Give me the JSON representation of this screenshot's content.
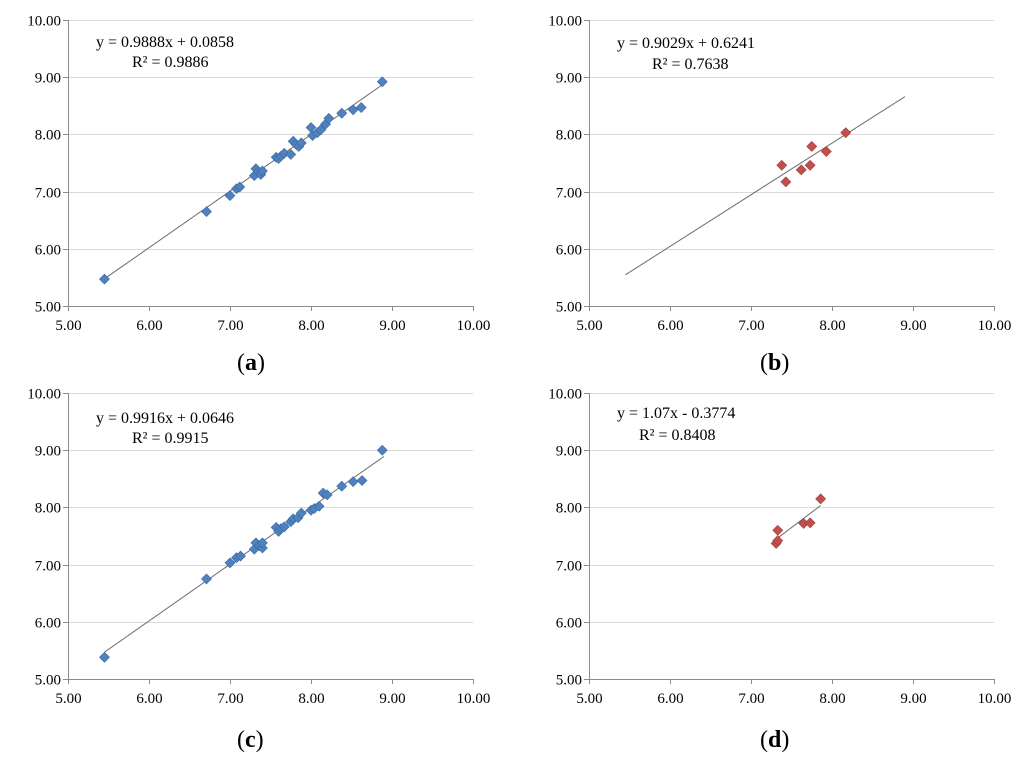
{
  "chart_data": [
    {
      "type": "scatter",
      "label": "a",
      "color": "#4f81bd",
      "equation": "y = 0.9888x + 0.0858",
      "r2": "R² = 0.9886",
      "trend": {
        "slope": 0.9888,
        "intercept": 0.0858,
        "x_range": [
          5.45,
          8.9
        ]
      },
      "xlim": [
        5,
        10
      ],
      "ylim": [
        5,
        10
      ],
      "xticks": [
        "5.00",
        "6.00",
        "7.00",
        "8.00",
        "9.00",
        "10.00"
      ],
      "yticks": [
        "5.00",
        "6.00",
        "7.00",
        "8.00",
        "9.00",
        "10.00"
      ],
      "points": [
        [
          5.45,
          5.47
        ],
        [
          6.71,
          6.65
        ],
        [
          7.0,
          6.93
        ],
        [
          7.08,
          7.05
        ],
        [
          7.12,
          7.08
        ],
        [
          7.3,
          7.28
        ],
        [
          7.32,
          7.4
        ],
        [
          7.35,
          7.35
        ],
        [
          7.38,
          7.3
        ],
        [
          7.4,
          7.36
        ],
        [
          7.57,
          7.6
        ],
        [
          7.6,
          7.58
        ],
        [
          7.63,
          7.62
        ],
        [
          7.67,
          7.67
        ],
        [
          7.75,
          7.65
        ],
        [
          7.78,
          7.88
        ],
        [
          7.82,
          7.82
        ],
        [
          7.85,
          7.79
        ],
        [
          7.88,
          7.85
        ],
        [
          8.0,
          8.12
        ],
        [
          8.02,
          7.98
        ],
        [
          8.08,
          8.03
        ],
        [
          8.12,
          8.08
        ],
        [
          8.18,
          8.18
        ],
        [
          8.22,
          8.28
        ],
        [
          8.38,
          8.37
        ],
        [
          8.52,
          8.43
        ],
        [
          8.62,
          8.47
        ],
        [
          8.88,
          8.92
        ]
      ]
    },
    {
      "type": "scatter",
      "label": "b",
      "color": "#c0504d",
      "equation": "y = 0.9029x + 0.6241",
      "r2": "R² = 0.7638",
      "trend": {
        "slope": 0.9029,
        "intercept": 0.6241,
        "x_range": [
          5.45,
          8.9
        ]
      },
      "xlim": [
        5,
        10
      ],
      "ylim": [
        5,
        10
      ],
      "xticks": [
        "5.00",
        "6.00",
        "7.00",
        "8.00",
        "9.00",
        "10.00"
      ],
      "yticks": [
        "5.00",
        "6.00",
        "7.00",
        "8.00",
        "9.00",
        "10.00"
      ],
      "points": [
        [
          7.38,
          7.46
        ],
        [
          7.43,
          7.17
        ],
        [
          7.62,
          7.38
        ],
        [
          7.73,
          7.46
        ],
        [
          7.75,
          7.79
        ],
        [
          7.93,
          7.7
        ],
        [
          8.17,
          8.03
        ]
      ]
    },
    {
      "type": "scatter",
      "label": "c",
      "color": "#4f81bd",
      "equation": "y = 0.9916x + 0.0646",
      "r2": "R² = 0.9915",
      "trend": {
        "slope": 0.9916,
        "intercept": 0.0646,
        "x_range": [
          5.45,
          8.9
        ]
      },
      "xlim": [
        5,
        10
      ],
      "ylim": [
        5,
        10
      ],
      "xticks": [
        "5.00",
        "6.00",
        "7.00",
        "8.00",
        "9.00",
        "10.00"
      ],
      "yticks": [
        "5.00",
        "6.00",
        "7.00",
        "8.00",
        "9.00",
        "10.00"
      ],
      "points": [
        [
          5.45,
          5.38
        ],
        [
          6.71,
          6.75
        ],
        [
          7.0,
          7.03
        ],
        [
          7.08,
          7.12
        ],
        [
          7.13,
          7.15
        ],
        [
          7.3,
          7.27
        ],
        [
          7.32,
          7.38
        ],
        [
          7.36,
          7.33
        ],
        [
          7.4,
          7.29
        ],
        [
          7.4,
          7.38
        ],
        [
          7.57,
          7.65
        ],
        [
          7.6,
          7.58
        ],
        [
          7.63,
          7.63
        ],
        [
          7.67,
          7.66
        ],
        [
          7.75,
          7.75
        ],
        [
          7.78,
          7.8
        ],
        [
          7.84,
          7.82
        ],
        [
          7.88,
          7.9
        ],
        [
          8.0,
          7.95
        ],
        [
          8.04,
          7.98
        ],
        [
          8.1,
          8.02
        ],
        [
          8.15,
          8.25
        ],
        [
          8.2,
          8.22
        ],
        [
          8.38,
          8.37
        ],
        [
          8.52,
          8.45
        ],
        [
          8.63,
          8.47
        ],
        [
          8.88,
          9.0
        ]
      ]
    },
    {
      "type": "scatter",
      "label": "d",
      "color": "#c0504d",
      "equation": "y = 1.07x - 0.3774",
      "r2": "R² = 0.8408",
      "trend": {
        "slope": 1.07,
        "intercept": -0.3774,
        "x_range": [
          7.31,
          7.86
        ]
      },
      "xlim": [
        5,
        10
      ],
      "ylim": [
        5,
        10
      ],
      "xticks": [
        "5.00",
        "6.00",
        "7.00",
        "8.00",
        "9.00",
        "10.00"
      ],
      "yticks": [
        "5.00",
        "6.00",
        "7.00",
        "8.00",
        "9.00",
        "10.00"
      ],
      "points": [
        [
          7.31,
          7.37
        ],
        [
          7.33,
          7.6
        ],
        [
          7.33,
          7.42
        ],
        [
          7.65,
          7.72
        ],
        [
          7.73,
          7.73
        ],
        [
          7.86,
          8.15
        ]
      ]
    }
  ]
}
